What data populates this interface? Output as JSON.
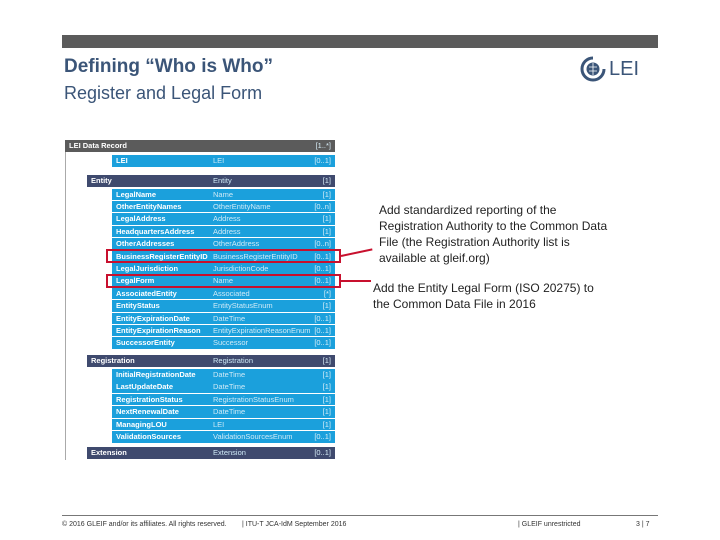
{
  "title": {
    "line1": "Defining “Who is Who”",
    "line2": "Register and Legal Form"
  },
  "logo": {
    "text": "LEI"
  },
  "table": {
    "root": {
      "name": "LEI Data Record",
      "type": "",
      "card": "[1..*]"
    },
    "lei": {
      "name": "LEI",
      "type": "LEI",
      "card": "[0..1]"
    },
    "entity": {
      "name": "Entity",
      "type": "Entity",
      "card": "[1]"
    },
    "entity_rows": [
      {
        "name": "LegalName",
        "type": "Name",
        "card": "[1]"
      },
      {
        "name": "OtherEntityNames",
        "type": "OtherEntityName",
        "card": "[0..n]"
      },
      {
        "name": "LegalAddress",
        "type": "Address",
        "card": "[1]"
      },
      {
        "name": "HeadquartersAddress",
        "type": "Address",
        "card": "[1]"
      },
      {
        "name": "OtherAddresses",
        "type": "OtherAddress",
        "card": "[0..n]"
      },
      {
        "name": "BusinessRegisterEntityID",
        "type": "BusinessRegisterEntityID",
        "card": "[0..1]"
      },
      {
        "name": "LegalJurisdiction",
        "type": "JurisdictionCode",
        "card": "[0..1]"
      },
      {
        "name": "LegalForm",
        "type": "Name",
        "card": "[0..1]"
      },
      {
        "name": "AssociatedEntity",
        "type": "Associated",
        "card": "[*]"
      },
      {
        "name": "EntityStatus",
        "type": "EntityStatusEnum",
        "card": "[1]"
      },
      {
        "name": "EntityExpirationDate",
        "type": "DateTime",
        "card": "[0..1]"
      },
      {
        "name": "EntityExpirationReason",
        "type": "EntityExpirationReasonEnum",
        "card": "[0..1]"
      },
      {
        "name": "SuccessorEntity",
        "type": "Successor",
        "card": "[0..1]"
      }
    ],
    "registration": {
      "name": "Registration",
      "type": "Registration",
      "card": "[1]"
    },
    "registration_rows": [
      {
        "name": "InitialRegistrationDate",
        "type": "DateTime",
        "card": "[1]"
      },
      {
        "name": "LastUpdateDate",
        "type": "DateTime",
        "card": "[1]"
      },
      {
        "name": "RegistrationStatus",
        "type": "RegistrationStatusEnum",
        "card": "[1]"
      },
      {
        "name": "NextRenewalDate",
        "type": "DateTime",
        "card": "[1]"
      },
      {
        "name": "ManagingLOU",
        "type": "LEI",
        "card": "[1]"
      },
      {
        "name": "ValidationSources",
        "type": "ValidationSourcesEnum",
        "card": "[0..1]"
      }
    ],
    "extension": {
      "name": "Extension",
      "type": "Extension",
      "card": "[0..1]"
    }
  },
  "notes": [
    "Add standardized reporting of the Registration Authority to the Common Data File (the Registration Authority list is available at gleif.org)",
    "Add the Entity Legal Form (ISO 20275) to the Common Data File in 2016"
  ],
  "footer": {
    "copyright": "© 2016 GLEIF and/or its affiliates. All rights reserved.",
    "event": "| ITU-T JCA-IdM September 2016",
    "classification": "|   GLEIF unrestricted",
    "page": "3 | 7"
  },
  "colors": {
    "header_gray": "#5b5b5b",
    "group_dark": "#3f4a6e",
    "row_cyan": "#1ba0dc",
    "highlight_red": "#c8102e"
  }
}
